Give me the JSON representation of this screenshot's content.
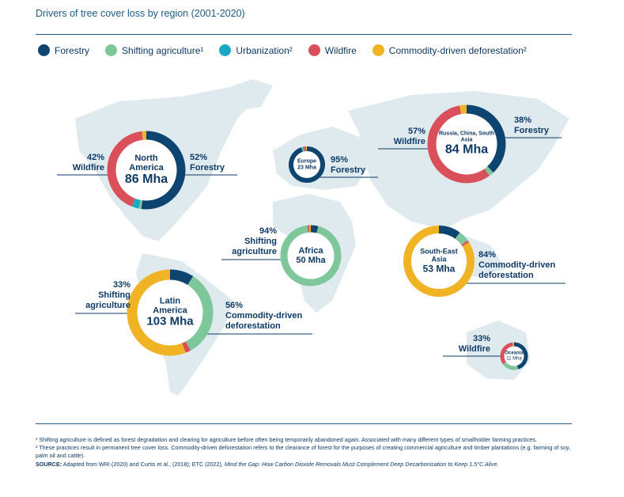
{
  "title": "Drivers of tree cover loss by region (2001-2020)",
  "legend": {
    "names": [
      "Forestry",
      "Shifting agriculture¹",
      "Urbanization²",
      "Wildfire",
      "Commodity-driven deforestation²"
    ],
    "colors": [
      "#0e4570",
      "#7dc79a",
      "#1aa9c0",
      "#d9505a",
      "#f0b323"
    ]
  },
  "chart_data": [
    {
      "type": "pie",
      "title": "North America",
      "total": "86 Mha",
      "values": [
        52,
        1,
        3,
        42,
        2
      ],
      "value_labels": [
        "52%",
        null,
        null,
        "42%",
        null
      ],
      "labels": [
        "Forestry",
        null,
        null,
        "Wildfire",
        null
      ]
    },
    {
      "type": "pie",
      "title": "Europe",
      "total": "23 Mha",
      "values": [
        95,
        1,
        1,
        2,
        1
      ],
      "value_labels": [
        "95%",
        null,
        null,
        null,
        null
      ],
      "labels": [
        "Forestry",
        null,
        null,
        null,
        null
      ]
    },
    {
      "type": "pie",
      "title": "Russia, China, South Asia",
      "total": "84 Mha",
      "values": [
        38,
        2,
        0,
        57,
        3
      ],
      "value_labels": [
        "38%",
        null,
        null,
        "57%",
        null
      ],
      "labels": [
        "Forestry",
        null,
        null,
        "Wildfire",
        null
      ]
    },
    {
      "type": "pie",
      "title": "Africa",
      "total": "50 Mha",
      "values": [
        4,
        94,
        0,
        1,
        1
      ],
      "value_labels": [
        null,
        "94%",
        null,
        null,
        null
      ],
      "labels": [
        null,
        "Shifting agriculture",
        null,
        null,
        null
      ]
    },
    {
      "type": "pie",
      "title": "South-East Asia",
      "total": "53 Mha",
      "values": [
        10,
        5,
        0,
        1,
        84
      ],
      "value_labels": [
        null,
        null,
        null,
        null,
        "84%"
      ],
      "labels": [
        null,
        null,
        null,
        null,
        "Commodity-driven deforestation"
      ]
    },
    {
      "type": "pie",
      "title": "Latin America",
      "total": "103 Mha",
      "values": [
        9,
        33,
        0,
        2,
        56
      ],
      "value_labels": [
        null,
        "33%",
        null,
        null,
        "56%"
      ],
      "labels": [
        null,
        "Shifting agriculture",
        null,
        null,
        "Commodity-driven deforestation"
      ]
    },
    {
      "type": "pie",
      "title": "Oceania",
      "total": "11 Mha",
      "values": [
        45,
        20,
        0,
        33,
        2
      ],
      "value_labels": [
        null,
        null,
        null,
        "33%",
        null
      ],
      "labels": [
        null,
        null,
        null,
        "Wildfire",
        null
      ]
    }
  ],
  "footnotes": [
    "¹ Shifting agriculture is defined as forest degradation and clearing for agriculture before often being temporarily abandoned again. Associated with many different types of smallholder farming practices.",
    "² These practices result in permanent tree cover loss. Commodity-driven deforestation refers to the clearance of forest for the purposes of creating commercial agriculture and timber plantations (e.g. farming of soy, palm oil and cattle)."
  ],
  "source": {
    "label": "SOURCE:",
    "text": "Adapted from WRI (2020) and Curtis et al., (2018); ETC (2022), ",
    "italic": "Mind the Gap: How Carbon Dioxide Removals Must Complement Deep Decarbonisation to Keep 1.5°C Alive."
  }
}
